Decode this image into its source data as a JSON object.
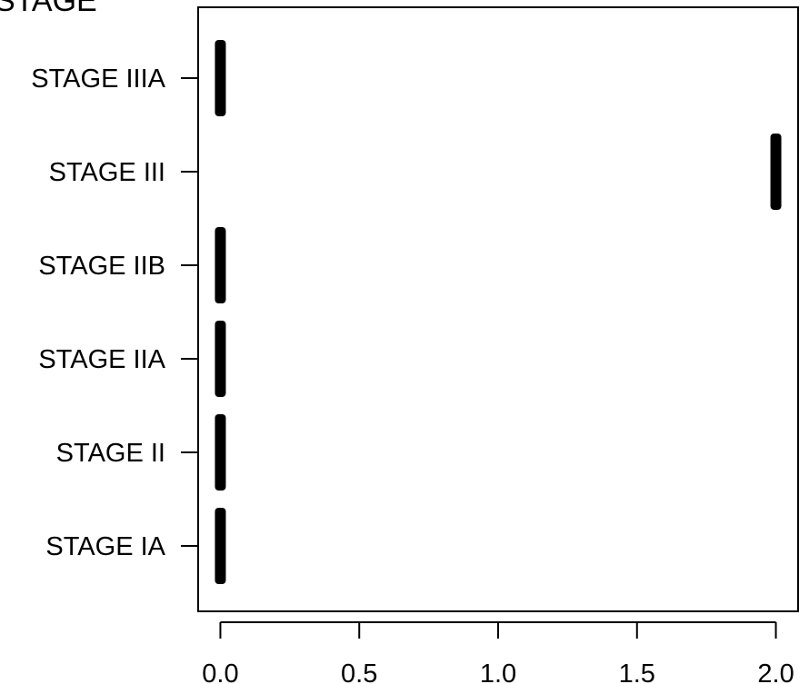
{
  "chart_data": {
    "type": "scatter",
    "title": "STAGE",
    "categories": [
      "STAGE IA",
      "STAGE II",
      "STAGE IIA",
      "STAGE IIB",
      "STAGE III",
      "STAGE IIIA"
    ],
    "values": [
      0,
      0,
      0,
      0,
      2,
      0
    ],
    "x_ticks": [
      "0.0",
      "0.5",
      "1.0",
      "1.5",
      "2.0"
    ],
    "xlim": [
      -0.08,
      2.08
    ],
    "xlabel": "",
    "ylabel": "",
    "grid": false,
    "legend": "none",
    "mark_color": "#000000"
  }
}
